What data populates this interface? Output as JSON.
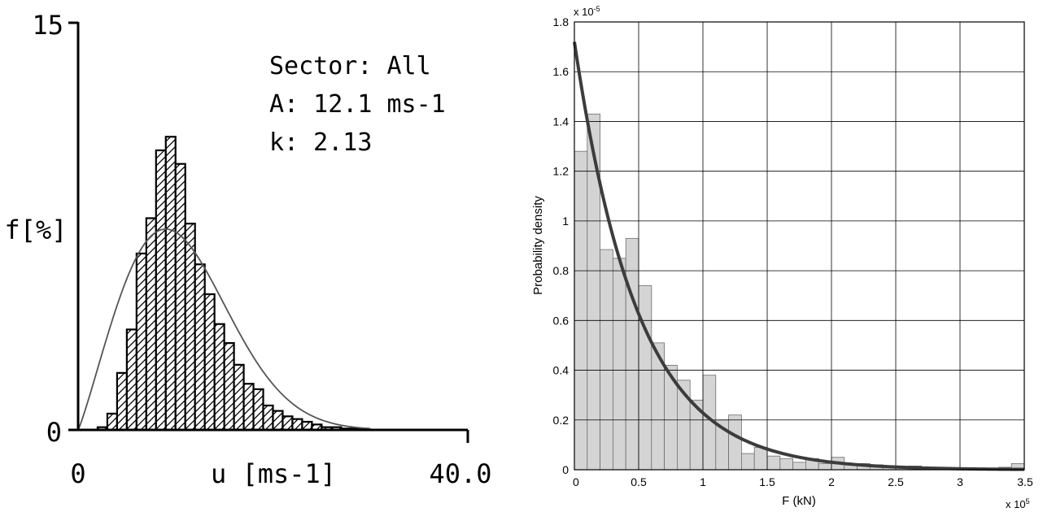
{
  "chart_data": [
    {
      "type": "bar",
      "xlabel": "u [ms-1]",
      "ylabel": "f[%]",
      "xlim": [
        0,
        40
      ],
      "ylim": [
        0,
        15
      ],
      "x_tick_labels": [
        "0",
        "40.0"
      ],
      "y_tick_labels": [
        "0",
        "15"
      ],
      "annotations": [
        "Sector: All",
        "A: 12.1 ms-1",
        "k: 2.13"
      ],
      "bar_hatch": "diagonal",
      "bin_width": 1,
      "bin_starts": [
        2,
        3,
        4,
        5,
        6,
        7,
        8,
        9,
        10,
        11,
        12,
        13,
        14,
        15,
        16,
        17,
        18,
        19,
        20,
        21,
        22,
        23,
        24,
        25,
        26,
        27,
        28
      ],
      "values": [
        0.1,
        0.6,
        2.1,
        3.7,
        6.5,
        7.8,
        10.3,
        10.8,
        9.8,
        7.6,
        6.1,
        5.0,
        3.9,
        3.2,
        2.4,
        1.7,
        1.5,
        0.9,
        0.7,
        0.5,
        0.4,
        0.3,
        0.2,
        0.1,
        0.1,
        0.05,
        0.05
      ],
      "fit_curve": {
        "shape": "Weibull",
        "A": 12.1,
        "k": 2.13
      }
    },
    {
      "type": "bar",
      "xlabel": "F (kN)",
      "ylabel": "Probability density",
      "x_multiplier": "x 10^5",
      "y_multiplier": "x 10^-5",
      "xlim": [
        0,
        3.5
      ],
      "ylim": [
        0,
        1.8
      ],
      "x_ticks": [
        0,
        0.5,
        1,
        1.5,
        2,
        2.5,
        3,
        3.5
      ],
      "x_tick_labels": [
        "0",
        "0.5",
        "1",
        "1.5",
        "2",
        "2.5",
        "3",
        "3.5"
      ],
      "y_ticks": [
        0,
        0.2,
        0.4,
        0.6,
        0.8,
        1,
        1.2,
        1.4,
        1.6,
        1.8
      ],
      "y_tick_labels": [
        "0",
        "0.2",
        "0.4",
        "0.6",
        "0.8",
        "1",
        "1.2",
        "1.4",
        "1.6",
        "1.8"
      ],
      "grid": true,
      "bin_width": 0.1,
      "bin_starts": [
        0,
        0.1,
        0.2,
        0.3,
        0.4,
        0.5,
        0.6,
        0.7,
        0.8,
        0.9,
        1.0,
        1.1,
        1.2,
        1.3,
        1.4,
        1.5,
        1.6,
        1.7,
        1.8,
        1.9,
        2.0,
        2.1,
        2.2,
        2.3,
        2.4,
        2.5,
        2.6,
        2.7,
        2.8,
        2.9,
        3.0,
        3.1,
        3.2,
        3.3,
        3.4
      ],
      "values": [
        1.28,
        1.43,
        0.885,
        0.85,
        0.93,
        0.74,
        0.51,
        0.42,
        0.36,
        0.28,
        0.38,
        0.2,
        0.22,
        0.065,
        0.09,
        0.055,
        0.045,
        0.03,
        0.045,
        0.025,
        0.05,
        0.025,
        0.025,
        0.02,
        0.015,
        0.01,
        0.015,
        0.01,
        0.01,
        0.005,
        0.005,
        0.005,
        0.005,
        0.01,
        0.025
      ],
      "fit_curve": {
        "shape": "exponential",
        "y_at_0": 1.72,
        "decay_rate": 2.02
      }
    }
  ]
}
